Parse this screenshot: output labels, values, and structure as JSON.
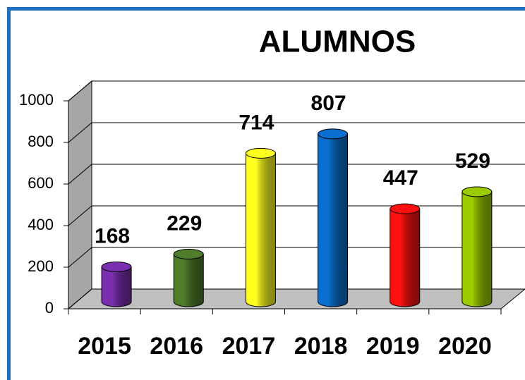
{
  "chart_data": {
    "type": "bar3d",
    "title": "ALUMNOS",
    "categories": [
      "2015",
      "2016",
      "2017",
      "2018",
      "2019",
      "2020"
    ],
    "values": [
      168,
      229,
      714,
      807,
      447,
      529
    ],
    "colors": [
      "#7a2fb0",
      "#4f7d2a",
      "#ffff20",
      "#0a6ed0",
      "#ff1010",
      "#9ccc00"
    ],
    "ylim": [
      0,
      1000
    ],
    "yticks": [
      0,
      200,
      400,
      600,
      800,
      1000
    ],
    "grid": true
  }
}
